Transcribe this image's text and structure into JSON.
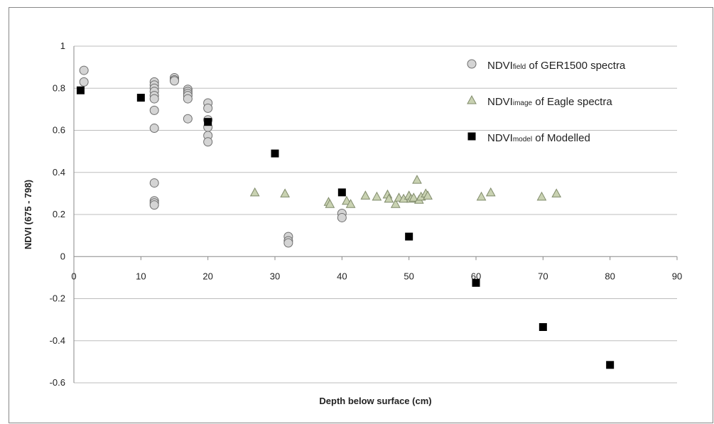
{
  "chart_data": {
    "type": "scatter",
    "title": "",
    "xlabel": "Depth below surface (cm)",
    "ylabel": "NDVI (675 - 798)",
    "xlim": [
      0,
      90
    ],
    "ylim": [
      -0.6,
      1
    ],
    "x_ticks": [
      "0",
      "10",
      "20",
      "30",
      "40",
      "50",
      "60",
      "70",
      "80",
      "90"
    ],
    "y_ticks": [
      "-0.6",
      "-0.4",
      "-0.2",
      "0",
      "0.2",
      "0.4",
      "0.6",
      "0.8",
      "1"
    ],
    "grid": "horizontal",
    "legend_position": "top-right",
    "series": [
      {
        "legend_pre": "NDVI",
        "legend_sub": "field",
        "legend_post": " of GER1500 spectra",
        "marker": "circle",
        "color": "#d4d4d4",
        "points": [
          [
            1.5,
            0.885
          ],
          [
            1.5,
            0.83
          ],
          [
            12,
            0.83
          ],
          [
            12,
            0.815
          ],
          [
            12,
            0.8
          ],
          [
            12,
            0.785
          ],
          [
            12,
            0.765
          ],
          [
            12,
            0.75
          ],
          [
            12,
            0.695
          ],
          [
            12,
            0.61
          ],
          [
            12,
            0.35
          ],
          [
            12,
            0.265
          ],
          [
            12,
            0.255
          ],
          [
            12,
            0.245
          ],
          [
            15,
            0.85
          ],
          [
            15,
            0.84
          ],
          [
            15,
            0.835
          ],
          [
            17,
            0.795
          ],
          [
            17,
            0.785
          ],
          [
            17,
            0.775
          ],
          [
            17,
            0.765
          ],
          [
            17,
            0.75
          ],
          [
            17,
            0.655
          ],
          [
            20,
            0.73
          ],
          [
            20,
            0.705
          ],
          [
            20,
            0.65
          ],
          [
            20,
            0.615
          ],
          [
            20,
            0.575
          ],
          [
            20,
            0.545
          ],
          [
            32,
            0.095
          ],
          [
            32,
            0.075
          ],
          [
            32,
            0.065
          ],
          [
            40,
            0.205
          ],
          [
            40,
            0.185
          ]
        ]
      },
      {
        "legend_pre": "NDVI",
        "legend_sub": "image",
        "legend_post": " of Eagle spectra",
        "marker": "triangle",
        "color": "#c9d2b2",
        "points": [
          [
            27,
            0.305
          ],
          [
            31.5,
            0.3
          ],
          [
            38,
            0.26
          ],
          [
            38.2,
            0.25
          ],
          [
            40.7,
            0.265
          ],
          [
            41.3,
            0.25
          ],
          [
            43.5,
            0.29
          ],
          [
            45.2,
            0.285
          ],
          [
            46.8,
            0.295
          ],
          [
            47,
            0.275
          ],
          [
            48,
            0.25
          ],
          [
            48.5,
            0.28
          ],
          [
            49.2,
            0.275
          ],
          [
            50,
            0.29
          ],
          [
            50.3,
            0.275
          ],
          [
            50.7,
            0.28
          ],
          [
            51.2,
            0.365
          ],
          [
            51.5,
            0.27
          ],
          [
            51.8,
            0.285
          ],
          [
            52.5,
            0.3
          ],
          [
            52.8,
            0.29
          ],
          [
            60.8,
            0.285
          ],
          [
            62.2,
            0.305
          ],
          [
            69.8,
            0.285
          ],
          [
            72,
            0.3
          ]
        ]
      },
      {
        "legend_pre": "NDVI",
        "legend_sub": "model",
        "legend_post": " of Modelled",
        "marker": "square",
        "color": "#000000",
        "points": [
          [
            1,
            0.79
          ],
          [
            10,
            0.755
          ],
          [
            20,
            0.64
          ],
          [
            30,
            0.49
          ],
          [
            40,
            0.305
          ],
          [
            50,
            0.095
          ],
          [
            60,
            -0.125
          ],
          [
            70,
            -0.335
          ],
          [
            80,
            -0.515
          ]
        ]
      }
    ]
  }
}
